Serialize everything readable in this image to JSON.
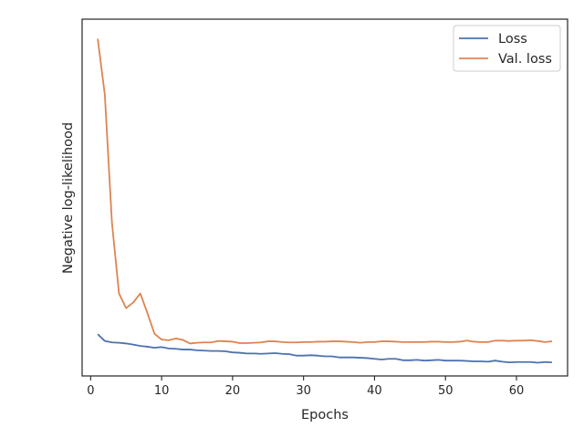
{
  "chart_data": {
    "type": "line",
    "title": "",
    "xlabel": "Epochs",
    "ylabel": "Negative log-likelihood",
    "xlim": [
      -1.2,
      67.2
    ],
    "ylim": [
      0.0,
      1.0
    ],
    "xticks": [
      0,
      10,
      20,
      30,
      40,
      50,
      60
    ],
    "yticks_shown": false,
    "grid": false,
    "legend_position": "top-right",
    "x": [
      1,
      2,
      3,
      4,
      5,
      6,
      7,
      8,
      9,
      10,
      11,
      12,
      13,
      14,
      15,
      16,
      17,
      18,
      19,
      20,
      21,
      22,
      23,
      24,
      25,
      26,
      27,
      28,
      29,
      30,
      31,
      32,
      33,
      34,
      35,
      36,
      37,
      38,
      39,
      40,
      41,
      42,
      43,
      44,
      45,
      46,
      47,
      48,
      49,
      50,
      51,
      52,
      53,
      54,
      55,
      56,
      57,
      58,
      59,
      60,
      61,
      62,
      63,
      64,
      65
    ],
    "series": [
      {
        "name": "Loss",
        "color": "#4c72b0",
        "values": [
          0.117,
          0.098,
          0.094,
          0.093,
          0.091,
          0.088,
          0.084,
          0.082,
          0.079,
          0.081,
          0.077,
          0.076,
          0.074,
          0.074,
          0.072,
          0.071,
          0.07,
          0.07,
          0.069,
          0.066,
          0.065,
          0.063,
          0.063,
          0.062,
          0.063,
          0.064,
          0.062,
          0.061,
          0.057,
          0.057,
          0.058,
          0.057,
          0.055,
          0.055,
          0.052,
          0.052,
          0.052,
          0.051,
          0.05,
          0.048,
          0.046,
          0.048,
          0.048,
          0.044,
          0.044,
          0.045,
          0.043,
          0.044,
          0.045,
          0.043,
          0.043,
          0.043,
          0.042,
          0.041,
          0.041,
          0.04,
          0.043,
          0.04,
          0.038,
          0.039,
          0.039,
          0.039,
          0.037,
          0.039,
          0.038
        ]
      },
      {
        "name": "Val. loss",
        "color": "#dd8452",
        "values": [
          0.945,
          0.788,
          0.43,
          0.231,
          0.19,
          0.206,
          0.231,
          0.176,
          0.118,
          0.102,
          0.1,
          0.105,
          0.101,
          0.091,
          0.093,
          0.094,
          0.094,
          0.098,
          0.097,
          0.096,
          0.092,
          0.092,
          0.093,
          0.094,
          0.097,
          0.097,
          0.095,
          0.094,
          0.094,
          0.095,
          0.095,
          0.096,
          0.096,
          0.097,
          0.097,
          0.096,
          0.095,
          0.093,
          0.095,
          0.095,
          0.097,
          0.097,
          0.096,
          0.095,
          0.095,
          0.095,
          0.095,
          0.096,
          0.096,
          0.095,
          0.095,
          0.096,
          0.099,
          0.096,
          0.095,
          0.095,
          0.099,
          0.099,
          0.098,
          0.099,
          0.099,
          0.1,
          0.098,
          0.095,
          0.097
        ]
      }
    ]
  }
}
